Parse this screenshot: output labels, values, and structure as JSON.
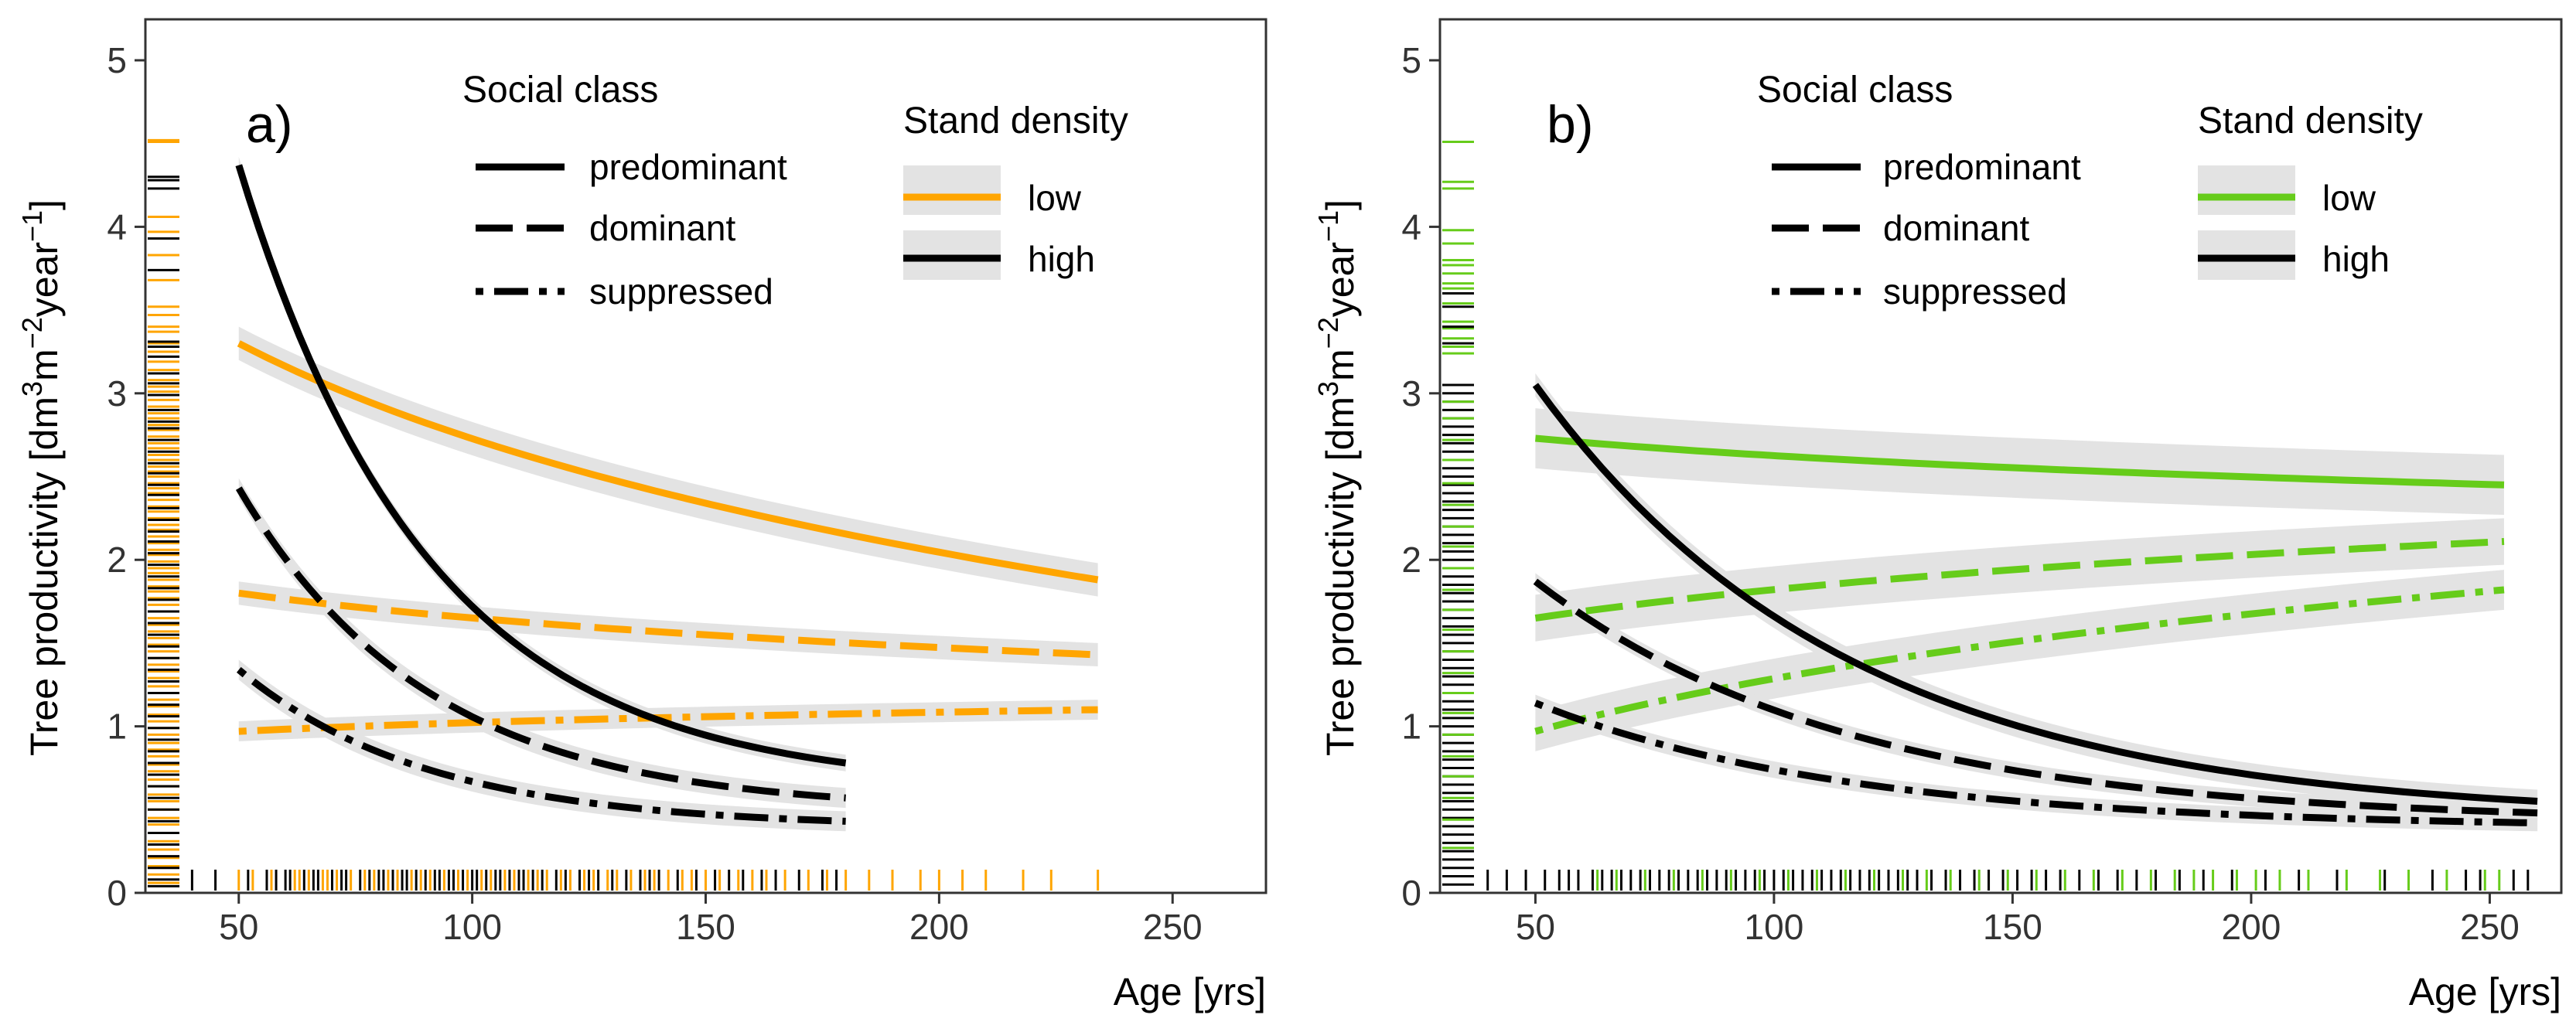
{
  "colors": {
    "panel_a_low": "#ffa500",
    "panel_b_low": "#66cc1a",
    "high": "#000000",
    "ribbon": "#e3e3e3",
    "rug_b_black": "#000000"
  },
  "legend": {
    "social_title": "Social class",
    "social_items": [
      {
        "label": "predominant",
        "dash": "solid"
      },
      {
        "label": "dominant",
        "dash": "dash"
      },
      {
        "label": "suppressed",
        "dash": "dashdot"
      }
    ],
    "density_title": "Stand density",
    "density_items": [
      {
        "label": "low",
        "color_key": "low"
      },
      {
        "label": "high",
        "color_key": "high"
      }
    ]
  },
  "chart_data": [
    {
      "type": "line",
      "panel_label": "a)",
      "title": "",
      "xlabel": "Age [yrs]",
      "ylabel": "Tree productivity [dm3m-2year-1]",
      "ylabel_parts": {
        "a": "Tree productivity [dm",
        "b": "3",
        "c": "m",
        "d": "−2",
        "e": "year",
        "f": "−1",
        "g": "]"
      },
      "xlim": [
        30,
        270
      ],
      "ylim": [
        0,
        5
      ],
      "x_ticks": [
        50,
        100,
        150,
        200,
        250
      ],
      "y_ticks": [
        0,
        1,
        2,
        3,
        4,
        5
      ],
      "low_color_key": "panel_a_low",
      "series": [
        {
          "name": "low / predominant",
          "density": "low",
          "social": "predominant",
          "x": [
            50,
            234
          ],
          "y_start": 3.3,
          "y_end": 1.88,
          "shape": "curve",
          "band": 0.1
        },
        {
          "name": "low / dominant",
          "density": "low",
          "social": "dominant",
          "x": [
            50,
            234
          ],
          "y_start": 1.8,
          "y_end": 1.43,
          "shape": "curve",
          "band": 0.07
        },
        {
          "name": "low / suppressed",
          "density": "low",
          "social": "suppressed",
          "x": [
            50,
            234
          ],
          "y_start": 0.97,
          "y_end": 1.1,
          "shape": "curve",
          "band": 0.06
        },
        {
          "name": "high / predominant",
          "density": "high",
          "social": "predominant",
          "x": [
            50,
            180
          ],
          "y_start": 4.37,
          "y_end": 0.78,
          "shape": "decay",
          "band": 0.05
        },
        {
          "name": "high / dominant",
          "density": "high",
          "social": "dominant",
          "x": [
            50,
            180
          ],
          "y_start": 2.43,
          "y_end": 0.57,
          "shape": "decay",
          "band": 0.06
        },
        {
          "name": "high / suppressed",
          "density": "high",
          "social": "suppressed",
          "x": [
            50,
            180
          ],
          "y_start": 1.34,
          "y_end": 0.43,
          "shape": "decay",
          "band": 0.06
        }
      ],
      "rug_x": [
        {
          "density": "high",
          "x": [
            40,
            45,
            52,
            56,
            58,
            60,
            61,
            64,
            66,
            67,
            70,
            72,
            73,
            76,
            78,
            80,
            81,
            83,
            85,
            86,
            88,
            90,
            92,
            93,
            95,
            96,
            98,
            100,
            101,
            103,
            105,
            106,
            108,
            110,
            111,
            113,
            115,
            118,
            120,
            123,
            125,
            127,
            130,
            133,
            136,
            138,
            140,
            144,
            148,
            152,
            155,
            158,
            162,
            165,
            170,
            175,
            178
          ]
        },
        {
          "density": "low",
          "x": [
            50,
            53,
            57,
            62,
            63,
            65,
            68,
            69,
            71,
            74,
            77,
            79,
            82,
            84,
            87,
            89,
            91,
            94,
            97,
            99,
            102,
            104,
            107,
            109,
            112,
            114,
            116,
            119,
            121,
            124,
            126,
            129,
            131,
            134,
            137,
            139,
            142,
            145,
            147,
            150,
            153,
            157,
            160,
            163,
            167,
            172,
            176,
            180,
            185,
            190,
            196,
            200,
            205,
            210,
            218,
            224,
            234
          ]
        }
      ],
      "rug_y": [
        {
          "density": "low",
          "y": [
            4.52,
            4.51,
            4.06,
            3.97,
            3.83,
            3.68,
            3.52,
            3.47,
            3.4,
            3.37,
            3.3,
            3.25,
            3.19,
            3.14,
            3.08,
            3.04,
            3.01,
            2.96,
            2.92,
            2.88,
            2.85,
            2.81,
            2.78,
            2.74,
            2.7,
            2.67,
            2.63,
            2.6,
            2.56,
            2.53,
            2.5,
            2.46,
            2.43,
            2.4,
            2.36,
            2.32,
            2.29,
            2.25,
            2.21,
            2.18,
            2.14,
            2.1,
            2.06,
            2.03,
            1.99,
            1.95,
            1.92,
            1.88,
            1.84,
            1.81,
            1.77,
            1.73,
            1.69,
            1.65,
            1.61,
            1.57,
            1.53,
            1.49,
            1.45,
            1.41,
            1.37,
            1.33,
            1.29,
            1.24,
            1.2,
            1.16,
            1.12,
            1.07,
            1.03,
            0.99,
            0.95,
            0.9,
            0.86,
            0.82,
            0.77,
            0.73,
            0.68,
            0.64,
            0.59,
            0.55,
            0.5,
            0.45,
            0.41,
            0.36,
            0.31,
            0.26,
            0.21,
            0.16,
            0.11,
            0.06
          ]
        },
        {
          "density": "high",
          "y": [
            4.3,
            4.28,
            4.23,
            3.93,
            3.74,
            3.31,
            3.28,
            3.22,
            3.12,
            3.06,
            2.99,
            2.9,
            2.83,
            2.79,
            2.72,
            2.65,
            2.58,
            2.52,
            2.45,
            2.39,
            2.31,
            2.24,
            2.17,
            2.11,
            2.04,
            1.97,
            1.9,
            1.83,
            1.76,
            1.69,
            1.62,
            1.55,
            1.48,
            1.41,
            1.34,
            1.27,
            1.2,
            1.13,
            1.06,
            0.99,
            0.92,
            0.85,
            0.78,
            0.71,
            0.64,
            0.57,
            0.5,
            0.43,
            0.36,
            0.29,
            0.22,
            0.15,
            0.08,
            0.04
          ]
        }
      ]
    },
    {
      "type": "line",
      "panel_label": "b)",
      "title": "",
      "xlabel": "Age [yrs]",
      "ylabel": "Tree productivity [dm3m-2year-1]",
      "ylabel_parts": {
        "a": "Tree productivity [dm",
        "b": "3",
        "c": "m",
        "d": "−2",
        "e": "year",
        "f": "−1",
        "g": "]"
      },
      "xlim": [
        30,
        265
      ],
      "ylim": [
        0,
        5
      ],
      "x_ticks": [
        50,
        100,
        150,
        200,
        250
      ],
      "y_ticks": [
        0,
        1,
        2,
        3,
        4,
        5
      ],
      "low_color_key": "panel_b_low",
      "series": [
        {
          "name": "low / predominant",
          "density": "low",
          "social": "predominant",
          "x": [
            50,
            253
          ],
          "y_start": 2.73,
          "y_end": 2.45,
          "shape": "curve",
          "band": 0.18
        },
        {
          "name": "low / dominant",
          "density": "low",
          "social": "dominant",
          "x": [
            50,
            253
          ],
          "y_start": 1.65,
          "y_end": 2.11,
          "shape": "curve",
          "band": 0.14
        },
        {
          "name": "low / suppressed",
          "density": "low",
          "social": "suppressed",
          "x": [
            50,
            253
          ],
          "y_start": 0.97,
          "y_end": 1.82,
          "shape": "curve",
          "band": 0.12
        },
        {
          "name": "high / predominant",
          "density": "high",
          "social": "predominant",
          "x": [
            50,
            260
          ],
          "y_start": 3.05,
          "y_end": 0.55,
          "shape": "decay",
          "band": 0.07
        },
        {
          "name": "high / dominant",
          "density": "high",
          "social": "dominant",
          "x": [
            50,
            260
          ],
          "y_start": 1.87,
          "y_end": 0.48,
          "shape": "decay",
          "band": 0.05
        },
        {
          "name": "high / suppressed",
          "density": "high",
          "social": "suppressed",
          "x": [
            50,
            260
          ],
          "y_start": 1.14,
          "y_end": 0.42,
          "shape": "decay",
          "band": 0.05
        }
      ],
      "rug_x": [
        {
          "density": "high",
          "x": [
            40,
            44,
            48,
            52,
            55,
            57,
            59,
            62,
            64,
            66,
            68,
            70,
            72,
            74,
            76,
            78,
            80,
            82,
            84,
            86,
            88,
            90,
            92,
            94,
            96,
            98,
            100,
            102,
            104,
            106,
            108,
            110,
            112,
            114,
            116,
            118,
            120,
            122,
            124,
            126,
            128,
            130,
            133,
            136,
            139,
            142,
            145,
            148,
            151,
            154,
            157,
            160,
            164,
            168,
            172,
            176,
            180,
            185,
            190,
            196,
            203,
            210,
            218,
            228,
            238,
            245,
            248,
            255,
            258
          ]
        },
        {
          "density": "low",
          "x": [
            63,
            67,
            73,
            79,
            85,
            91,
            97,
            103,
            109,
            115,
            121,
            127,
            132,
            137,
            143,
            149,
            155,
            161,
            167,
            173,
            179,
            184,
            188,
            192,
            197,
            201,
            206,
            212,
            220,
            227,
            233,
            241,
            249,
            252
          ]
        }
      ],
      "rug_y": [
        {
          "density": "low",
          "y": [
            4.51,
            4.27,
            4.23,
            3.98,
            3.9,
            3.8,
            3.77,
            3.72,
            3.66,
            3.63,
            3.54,
            3.43,
            3.39,
            3.33,
            3.28,
            3.24
          ]
        },
        {
          "density": "high",
          "y": [
            3.6,
            3.52,
            3.4,
            3.3,
            3.05,
            3.0,
            2.95,
            2.9,
            2.85,
            2.8,
            2.75,
            2.7,
            2.65,
            2.6,
            2.55,
            2.5,
            2.45,
            2.4,
            2.35,
            2.3,
            2.25,
            2.2,
            2.15,
            2.1,
            2.05,
            2.0,
            1.95,
            1.9,
            1.85,
            1.8,
            1.75,
            1.7,
            1.65,
            1.6,
            1.55,
            1.5,
            1.45,
            1.4,
            1.35,
            1.3,
            1.25,
            1.2,
            1.15,
            1.1,
            1.05,
            1.0,
            0.95,
            0.9,
            0.85,
            0.8,
            0.75,
            0.7,
            0.65,
            0.6,
            0.55,
            0.5,
            0.45,
            0.4,
            0.35,
            0.3,
            0.25,
            0.2,
            0.15,
            0.1,
            0.05
          ]
        },
        {
          "density": "low",
          "y": [
            2.95,
            2.85,
            2.72,
            2.6,
            2.46,
            2.33,
            2.2,
            2.08,
            1.95,
            1.82,
            1.7,
            1.58,
            1.45,
            1.32,
            1.2,
            1.08,
            0.95,
            0.82,
            0.7,
            0.57,
            0.44,
            0.27
          ]
        }
      ]
    }
  ]
}
